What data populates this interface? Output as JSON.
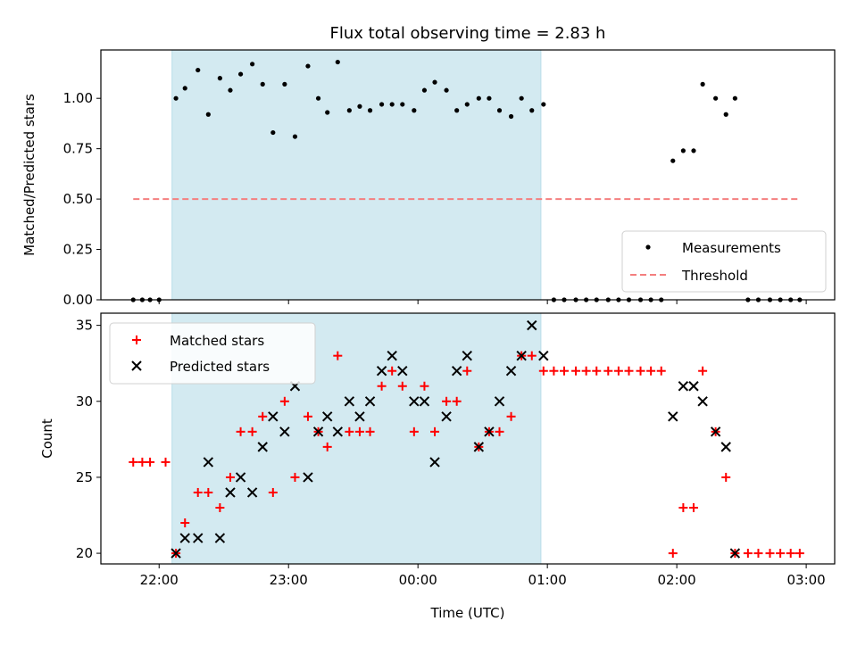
{
  "chart_data": [
    {
      "type": "scatter",
      "title": "Flux total observing time = 2.83 h",
      "xlabel": "",
      "ylabel": "Matched/Predicted stars",
      "ylim": [
        0,
        1.24
      ],
      "yticks": [
        "0.00",
        "0.25",
        "0.50",
        "0.75",
        "1.00"
      ],
      "ytick_values": [
        0,
        0.25,
        0.5,
        0.75,
        1.0
      ],
      "highlight_span": {
        "start": 22.1,
        "end": 24.95,
        "color": "#d3eaf1"
      },
      "threshold": {
        "name": "Threshold",
        "value": 0.5,
        "x_start": 21.8,
        "x_end": 24.95,
        "x_start2": 24.95,
        "x_end2": 26.95,
        "color": "#f47f7f"
      },
      "legend": {
        "placement": "lower-right",
        "entries": [
          "Measurements",
          "Threshold"
        ]
      },
      "series": [
        {
          "name": "Measurements",
          "color": "#000000",
          "marker": "dot",
          "x": [
            21.8,
            21.87,
            21.93,
            22.0,
            22.13,
            22.2,
            22.3,
            22.38,
            22.47,
            22.55,
            22.63,
            22.72,
            22.8,
            22.88,
            22.97,
            23.05,
            23.15,
            23.23,
            23.3,
            23.38,
            23.47,
            23.55,
            23.63,
            23.72,
            23.8,
            23.88,
            23.97,
            24.05,
            24.13,
            24.22,
            24.3,
            24.38,
            24.47,
            24.55,
            24.63,
            24.72,
            24.8,
            24.88,
            24.97,
            25.05,
            25.13,
            25.22,
            25.3,
            25.38,
            25.47,
            25.55,
            25.63,
            25.72,
            25.8,
            25.88,
            25.97,
            26.05,
            26.13,
            26.2,
            26.3,
            26.38,
            26.45,
            26.55,
            26.63,
            26.72,
            26.8,
            26.88,
            26.95
          ],
          "y": [
            0,
            0,
            0,
            0,
            1.0,
            1.05,
            1.14,
            0.92,
            1.1,
            1.04,
            1.12,
            1.17,
            1.07,
            0.83,
            1.07,
            0.81,
            1.16,
            1.0,
            0.93,
            1.18,
            0.94,
            0.96,
            0.94,
            0.97,
            0.97,
            0.97,
            0.94,
            1.04,
            1.08,
            1.04,
            0.94,
            0.97,
            1.0,
            1.0,
            0.94,
            0.91,
            1.0,
            0.94,
            0.97,
            0,
            0,
            0,
            0,
            0,
            0,
            0,
            0,
            0,
            0,
            0,
            0.69,
            0.74,
            0.74,
            1.07,
            1.0,
            0.92,
            1.0,
            0,
            0,
            0,
            0,
            0,
            0
          ]
        }
      ]
    },
    {
      "type": "scatter",
      "title": "",
      "xlabel": "Time (UTC)",
      "ylabel": "Count",
      "ylim": [
        19.3,
        35.8
      ],
      "yticks": [
        "20",
        "25",
        "30",
        "35"
      ],
      "ytick_values": [
        20,
        25,
        30,
        35
      ],
      "xlim": [
        21.55,
        27.22
      ],
      "xticks": [
        "22:00",
        "23:00",
        "00:00",
        "01:00",
        "02:00",
        "03:00"
      ],
      "xtick_values": [
        22,
        23,
        24,
        25,
        26,
        27
      ],
      "highlight_span": {
        "start": 22.1,
        "end": 24.95,
        "color": "#d3eaf1"
      },
      "legend": {
        "placement": "upper-left",
        "entries": [
          "Matched stars",
          "Predicted stars"
        ]
      },
      "series": [
        {
          "name": "Matched stars",
          "color": "#ff0000",
          "marker": "plus",
          "x": [
            21.8,
            21.87,
            21.93,
            22.05,
            22.13,
            22.2,
            22.3,
            22.38,
            22.47,
            22.55,
            22.63,
            22.72,
            22.8,
            22.88,
            22.97,
            23.05,
            23.15,
            23.23,
            23.3,
            23.38,
            23.47,
            23.55,
            23.63,
            23.72,
            23.8,
            23.88,
            23.97,
            24.05,
            24.13,
            24.22,
            24.3,
            24.38,
            24.47,
            24.55,
            24.63,
            24.72,
            24.8,
            24.88,
            24.97,
            25.05,
            25.13,
            25.22,
            25.3,
            25.38,
            25.47,
            25.55,
            25.63,
            25.72,
            25.8,
            25.88,
            25.97,
            26.05,
            26.13,
            26.2,
            26.3,
            26.38,
            26.45,
            26.55,
            26.63,
            26.72,
            26.8,
            26.88,
            26.95
          ],
          "y": [
            26,
            26,
            26,
            26,
            20,
            22,
            24,
            24,
            23,
            25,
            28,
            28,
            29,
            24,
            30,
            25,
            29,
            28,
            27,
            33,
            28,
            28,
            28,
            31,
            32,
            31,
            28,
            31,
            28,
            30,
            30,
            32,
            27,
            28,
            28,
            29,
            33,
            33,
            32,
            32,
            32,
            32,
            32,
            32,
            32,
            32,
            32,
            32,
            32,
            32,
            20,
            23,
            23,
            32,
            28,
            25,
            20,
            20,
            20,
            20,
            20,
            20,
            20
          ]
        },
        {
          "name": "Predicted stars",
          "color": "#000000",
          "marker": "x",
          "x": [
            22.13,
            22.2,
            22.3,
            22.38,
            22.47,
            22.55,
            22.63,
            22.72,
            22.8,
            22.88,
            22.97,
            23.05,
            23.15,
            23.23,
            23.3,
            23.38,
            23.47,
            23.55,
            23.63,
            23.72,
            23.8,
            23.88,
            23.97,
            24.05,
            24.13,
            24.22,
            24.3,
            24.38,
            24.47,
            24.55,
            24.63,
            24.72,
            24.8,
            24.88,
            24.97,
            25.97,
            26.05,
            26.13,
            26.2,
            26.3,
            26.38,
            26.45
          ],
          "y": [
            20,
            21,
            21,
            26,
            21,
            24,
            25,
            24,
            27,
            29,
            28,
            31,
            25,
            28,
            29,
            28,
            30,
            29,
            30,
            32,
            33,
            32,
            30,
            30,
            26,
            29,
            32,
            33,
            27,
            28,
            30,
            32,
            33,
            35,
            33,
            29,
            31,
            31,
            30,
            28,
            27,
            20
          ]
        }
      ]
    }
  ]
}
